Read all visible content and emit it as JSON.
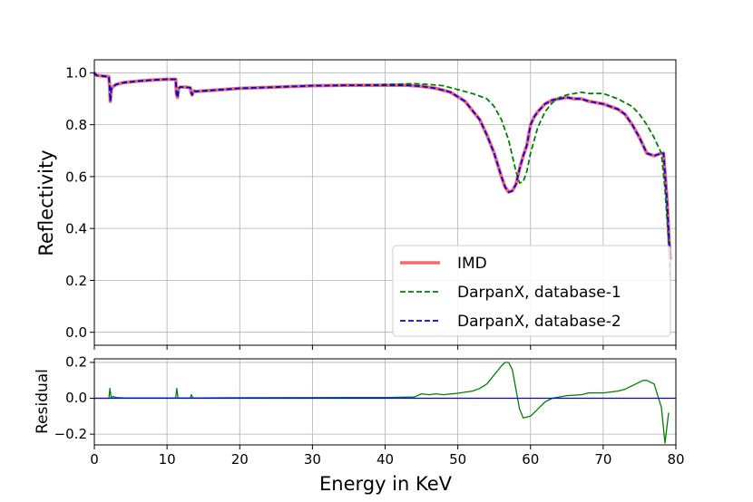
{
  "chart_data": [
    {
      "type": "line",
      "name": "reflectivity",
      "xlabel": "",
      "ylabel": "Reflectivity",
      "xlim": [
        0,
        80
      ],
      "ylim": [
        -0.05,
        1.05
      ],
      "xticks": [
        0,
        10,
        20,
        30,
        40,
        50,
        60,
        70,
        80
      ],
      "yticks": [
        0.0,
        0.2,
        0.4,
        0.6,
        0.8,
        1.0
      ],
      "ytick_labels": [
        "0.0",
        "0.2",
        "0.4",
        "0.6",
        "0.8",
        "1.0"
      ],
      "grid": true,
      "legend_position": "lower-right",
      "series": [
        {
          "name": "IMD",
          "color": "#f36b6b",
          "style": "solid",
          "x": [
            0,
            0.3,
            2.0,
            2.1,
            2.2,
            2.35,
            2.5,
            3,
            4,
            6,
            8,
            10,
            11.2,
            11.3,
            11.45,
            11.6,
            11.8,
            12.5,
            13.2,
            13.3,
            13.45,
            13.6,
            14,
            16,
            20,
            25,
            30,
            35,
            40,
            43,
            45,
            47,
            49,
            51,
            53,
            54,
            55,
            56,
            56.5,
            57,
            57.5,
            58,
            58.5,
            59,
            59.5,
            60,
            60.5,
            61,
            62,
            63,
            64,
            65,
            66,
            67,
            68,
            70,
            72,
            73,
            74,
            75,
            75.5,
            76,
            77,
            78,
            78.3,
            78.8,
            79.2
          ],
          "y": [
            1.0,
            0.99,
            0.985,
            0.95,
            0.89,
            0.94,
            0.945,
            0.955,
            0.962,
            0.968,
            0.972,
            0.975,
            0.975,
            0.92,
            0.905,
            0.94,
            0.945,
            0.945,
            0.942,
            0.925,
            0.915,
            0.93,
            0.928,
            0.932,
            0.94,
            0.945,
            0.95,
            0.952,
            0.952,
            0.952,
            0.948,
            0.94,
            0.925,
            0.89,
            0.82,
            0.76,
            0.69,
            0.6,
            0.56,
            0.54,
            0.545,
            0.57,
            0.63,
            0.68,
            0.72,
            0.8,
            0.83,
            0.85,
            0.88,
            0.895,
            0.9,
            0.905,
            0.9,
            0.9,
            0.89,
            0.88,
            0.86,
            0.84,
            0.8,
            0.75,
            0.72,
            0.69,
            0.68,
            0.69,
            0.69,
            0.5,
            0.28
          ]
        },
        {
          "name": "DarpanX, database-1",
          "color": "#008000",
          "style": "dashed",
          "x": [
            0,
            0.3,
            2.0,
            2.1,
            2.2,
            2.35,
            2.5,
            3,
            4,
            6,
            8,
            10,
            11.2,
            11.3,
            11.45,
            11.6,
            11.8,
            12.5,
            13.2,
            13.3,
            13.45,
            13.6,
            14,
            16,
            20,
            25,
            30,
            35,
            40,
            44,
            46,
            48,
            50,
            52,
            54,
            55,
            56,
            57,
            57.5,
            58,
            58.5,
            59,
            59.5,
            60,
            61,
            62,
            63,
            64,
            65,
            66,
            67,
            68,
            70,
            72,
            74,
            75,
            76,
            77,
            78,
            78.5,
            79.0,
            79.2
          ],
          "y": [
            1.0,
            0.99,
            0.985,
            0.95,
            0.89,
            0.94,
            0.945,
            0.955,
            0.962,
            0.968,
            0.972,
            0.975,
            0.975,
            0.92,
            0.905,
            0.94,
            0.945,
            0.945,
            0.942,
            0.925,
            0.915,
            0.93,
            0.928,
            0.932,
            0.94,
            0.945,
            0.95,
            0.952,
            0.955,
            0.958,
            0.955,
            0.95,
            0.935,
            0.92,
            0.9,
            0.87,
            0.82,
            0.74,
            0.68,
            0.62,
            0.575,
            0.58,
            0.62,
            0.69,
            0.79,
            0.85,
            0.885,
            0.905,
            0.915,
            0.92,
            0.925,
            0.92,
            0.92,
            0.9,
            0.87,
            0.84,
            0.8,
            0.75,
            0.69,
            0.55,
            0.35,
            0.2
          ]
        },
        {
          "name": "DarpanX, database-2",
          "color": "#0000ff",
          "style": "dashed",
          "x": [
            0,
            0.3,
            2.0,
            2.1,
            2.2,
            2.35,
            2.5,
            3,
            4,
            6,
            8,
            10,
            11.2,
            11.3,
            11.45,
            11.6,
            11.8,
            12.5,
            13.2,
            13.3,
            13.45,
            13.6,
            14,
            16,
            20,
            25,
            30,
            35,
            40,
            43,
            45,
            47,
            49,
            51,
            53,
            54,
            55,
            56,
            56.5,
            57,
            57.5,
            58,
            58.5,
            59,
            59.5,
            60,
            60.5,
            61,
            62,
            63,
            64,
            65,
            66,
            67,
            68,
            70,
            72,
            73,
            74,
            75,
            75.5,
            76,
            77,
            78,
            78.3,
            78.8,
            79.2
          ],
          "y": [
            1.0,
            0.99,
            0.985,
            0.95,
            0.89,
            0.94,
            0.945,
            0.955,
            0.962,
            0.968,
            0.972,
            0.975,
            0.975,
            0.92,
            0.905,
            0.94,
            0.945,
            0.945,
            0.942,
            0.925,
            0.915,
            0.93,
            0.928,
            0.932,
            0.94,
            0.945,
            0.95,
            0.952,
            0.952,
            0.952,
            0.948,
            0.94,
            0.925,
            0.89,
            0.82,
            0.76,
            0.69,
            0.6,
            0.56,
            0.54,
            0.545,
            0.57,
            0.63,
            0.68,
            0.72,
            0.8,
            0.83,
            0.85,
            0.88,
            0.895,
            0.9,
            0.905,
            0.9,
            0.9,
            0.89,
            0.88,
            0.86,
            0.84,
            0.8,
            0.75,
            0.72,
            0.69,
            0.68,
            0.69,
            0.69,
            0.5,
            0.28
          ]
        }
      ]
    },
    {
      "type": "line",
      "name": "residual",
      "xlabel": "Energy in KeV",
      "ylabel": "Residual",
      "xlim": [
        0,
        80
      ],
      "ylim": [
        -0.26,
        0.22
      ],
      "xticks": [
        0,
        10,
        20,
        30,
        40,
        50,
        60,
        70,
        80
      ],
      "xtick_labels": [
        "0",
        "10",
        "20",
        "30",
        "40",
        "50",
        "60",
        "70",
        "80"
      ],
      "yticks": [
        -0.2,
        0.0,
        0.2
      ],
      "ytick_labels": [
        "−0.2",
        "0.0",
        "0.2"
      ],
      "grid": true,
      "series": [
        {
          "name": "DarpanX, database-1",
          "color": "#008000",
          "style": "solid",
          "x": [
            0,
            2.0,
            2.15,
            2.3,
            2.6,
            3,
            4,
            11.2,
            11.35,
            11.5,
            11.7,
            13.2,
            13.35,
            13.5,
            13.7,
            20,
            30,
            40,
            44,
            45,
            46,
            47,
            48,
            50,
            52,
            53,
            54,
            55,
            56,
            56.5,
            57,
            57.5,
            58,
            58.5,
            59,
            59.5,
            60,
            61,
            62,
            63,
            65,
            67,
            68,
            70,
            72,
            73,
            74,
            75,
            75.5,
            76,
            77,
            78,
            78.5,
            79.0
          ],
          "y": [
            0.0,
            0.0,
            0.055,
            0.005,
            0.01,
            0.005,
            0.002,
            0.002,
            0.055,
            0.005,
            0.002,
            0.002,
            0.02,
            0.005,
            0.002,
            0.003,
            0.004,
            0.005,
            0.007,
            0.025,
            0.02,
            0.025,
            0.02,
            0.028,
            0.04,
            0.055,
            0.08,
            0.13,
            0.18,
            0.2,
            0.2,
            0.16,
            0.05,
            -0.06,
            -0.11,
            -0.105,
            -0.1,
            -0.06,
            -0.02,
            0.0,
            0.015,
            0.02,
            0.03,
            0.03,
            0.04,
            0.05,
            0.07,
            0.09,
            0.1,
            0.1,
            0.08,
            -0.05,
            -0.25,
            -0.08
          ]
        },
        {
          "name": "DarpanX, database-2",
          "color": "#0000ff",
          "style": "solid",
          "x": [
            0,
            80
          ],
          "y": [
            0.0,
            0.0
          ]
        }
      ]
    }
  ]
}
